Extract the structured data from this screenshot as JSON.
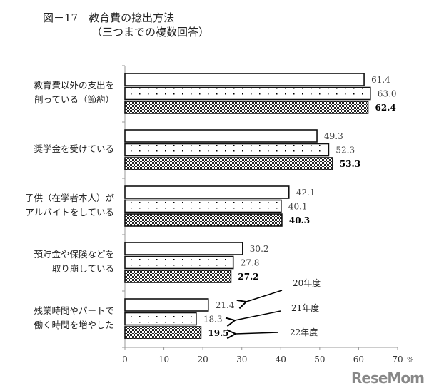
{
  "title_line1": "図－17　教育費の捻出方法",
  "title_line2": "（三つまでの複数回答）",
  "chart_data": {
    "type": "bar",
    "orientation": "horizontal",
    "categories": [
      "教育費以外の支出を\n削っている（節約）",
      "奨学金を受けている",
      "子供（在学者本人）が\nアルバイトをしている",
      "預貯金や保険などを\n取り崩している",
      "残業時間やパートで\n働く時間を増やした"
    ],
    "series": [
      {
        "name": "20年度",
        "values": [
          61.4,
          49.3,
          42.1,
          30.2,
          21.4
        ],
        "labels": [
          "61.4",
          "49.3",
          "42.1",
          "30.2",
          "21.4"
        ]
      },
      {
        "name": "21年度",
        "values": [
          63.0,
          52.3,
          40.1,
          27.8,
          18.3
        ],
        "labels": [
          "63.0",
          "52.3",
          "40.1",
          "27.8",
          "18.3"
        ]
      },
      {
        "name": "22年度",
        "values": [
          62.4,
          53.3,
          40.3,
          27.2,
          19.5
        ],
        "labels": [
          "62.4",
          "53.3",
          "40.3",
          "27.2",
          "19.5"
        ]
      }
    ],
    "xlim": [
      0,
      70
    ],
    "xticks": [
      "0",
      "10",
      "20",
      "30",
      "40",
      "50",
      "60",
      "70"
    ],
    "xunit": "%",
    "grid": false,
    "legend": "annotated arrows, lower-right"
  },
  "watermark": "ReseMom"
}
